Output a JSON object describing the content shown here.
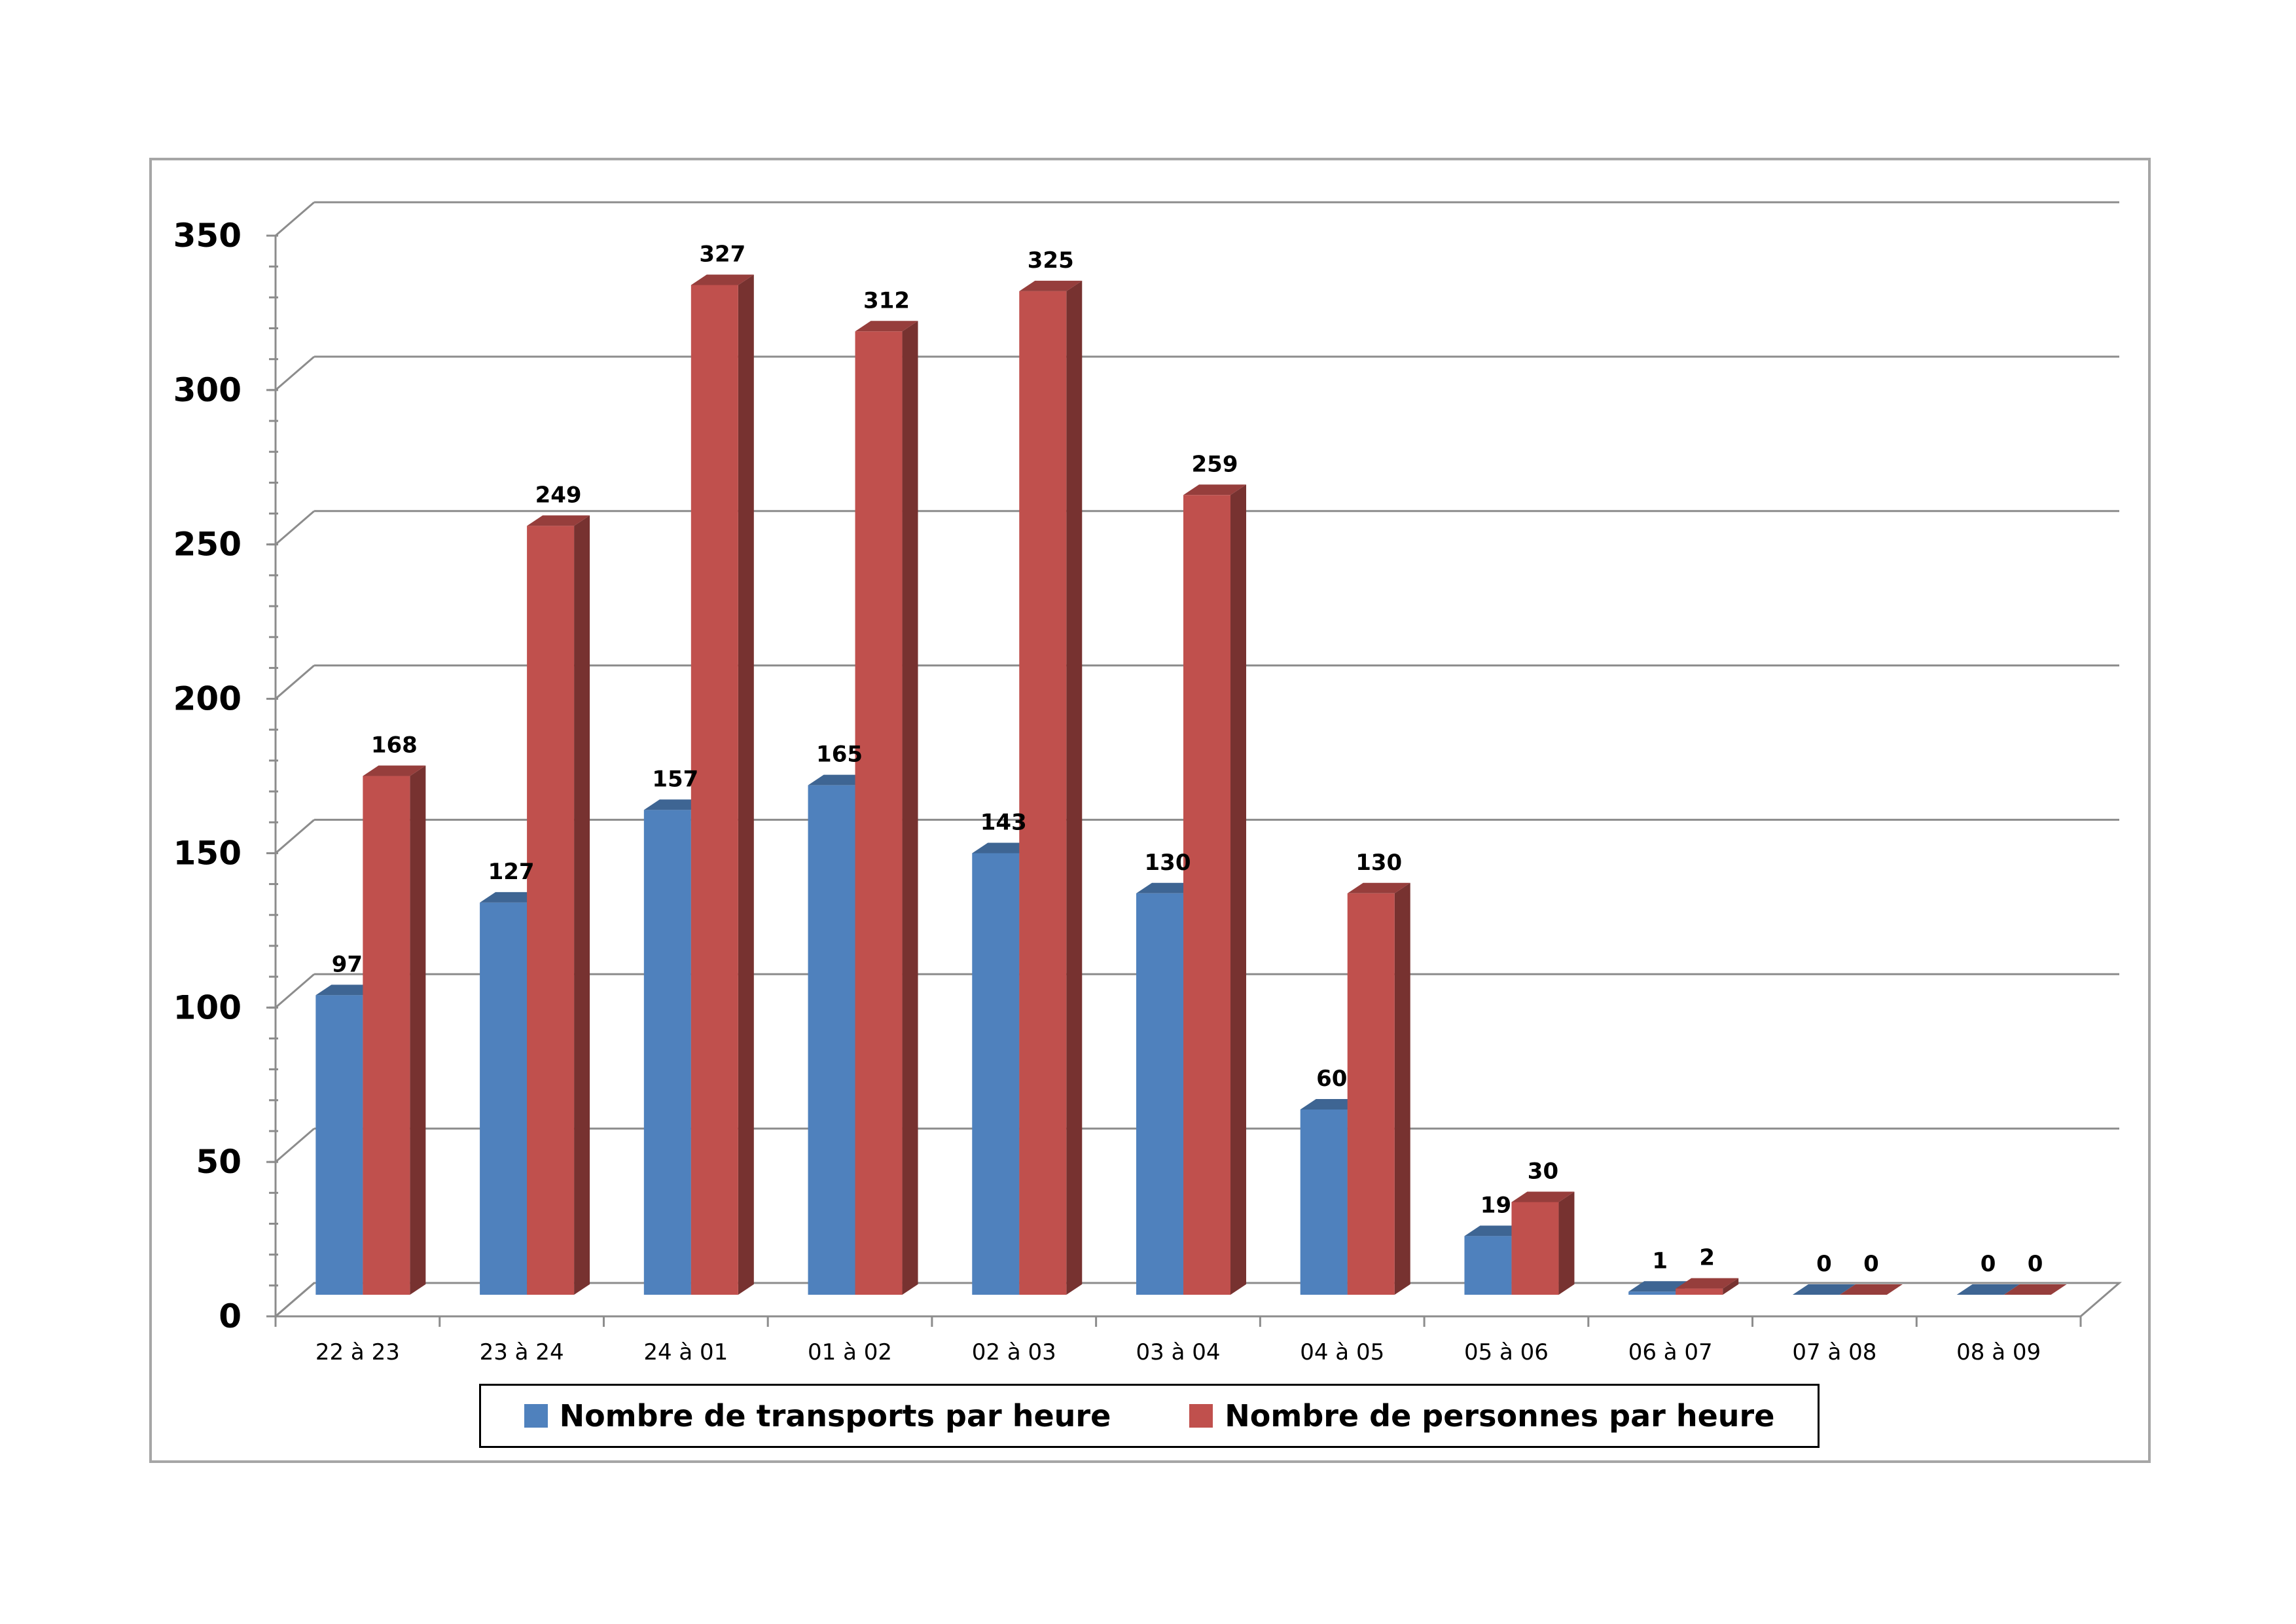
{
  "chart_data": {
    "type": "bar",
    "title": "",
    "xlabel": "",
    "ylabel": "",
    "ylim": [
      0,
      350
    ],
    "yticks": [
      0,
      50,
      100,
      150,
      200,
      250,
      300,
      350
    ],
    "grid": true,
    "legend_position": "bottom",
    "categories": [
      "22 à 23",
      "23 à 24",
      "24 à 01",
      "01 à 02",
      "02 à 03",
      "03 à 04",
      "04 à 05",
      "05 à 06",
      "06 à 07",
      "07 à 08",
      "08 à 09"
    ],
    "series": [
      {
        "name": "Nombre de transports par heure",
        "color": "#4f81bd",
        "values": [
          97,
          127,
          157,
          165,
          143,
          130,
          60,
          19,
          1,
          0,
          0
        ]
      },
      {
        "name": "Nombre de personnes par heure",
        "color": "#c0504d",
        "values": [
          168,
          249,
          327,
          312,
          325,
          259,
          130,
          30,
          2,
          0,
          0
        ]
      }
    ]
  }
}
